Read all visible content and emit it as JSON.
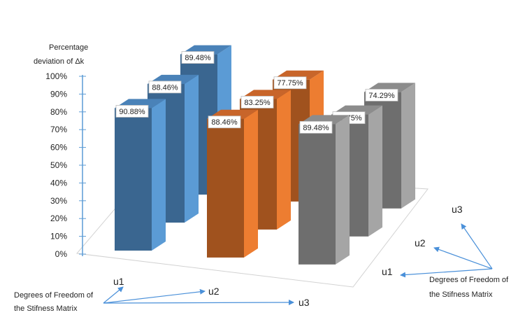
{
  "chart_data": {
    "type": "bar",
    "ylabel": [
      "Percentage",
      "deviation of Δk"
    ],
    "yticks": [
      "0%",
      "10%",
      "20%",
      "30%",
      "40%",
      "50%",
      "60%",
      "70%",
      "80%",
      "90%",
      "100%"
    ],
    "ylim": [
      0,
      100
    ],
    "x_axis": {
      "name": [
        "Degrees of Freedom of",
        "the Stifness Matrix"
      ],
      "categories": [
        "u1",
        "u2",
        "u3"
      ]
    },
    "depth_axis": {
      "name": [
        "Degrees of Freedom of",
        "the Stifness Matrix"
      ],
      "categories": [
        "u1",
        "u2",
        "u3"
      ]
    },
    "series": [
      {
        "values": [
          90.88,
          88.46,
          89.48
        ],
        "labels": [
          "90.88%",
          "88.46%",
          "89.48%"
        ]
      },
      {
        "values": [
          88.46,
          83.25,
          77.75
        ],
        "labels": [
          "88.46%",
          "83.25%",
          "77.75%"
        ]
      },
      {
        "values": [
          89.48,
          77.75,
          74.29
        ],
        "labels": [
          "89.48%",
          "77.75%",
          "74.29%"
        ]
      }
    ],
    "colors": {
      "blue": {
        "front": "#3A6690",
        "side": "#5B9BD5",
        "top": "#4A82B8"
      },
      "orange": {
        "front": "#A0521E",
        "side": "#ED7D31",
        "top": "#C8652A"
      },
      "gray": {
        "front": "#6E6E6E",
        "side": "#A5A5A5",
        "top": "#8C8C8C"
      }
    },
    "legend": "none",
    "grid": false
  }
}
